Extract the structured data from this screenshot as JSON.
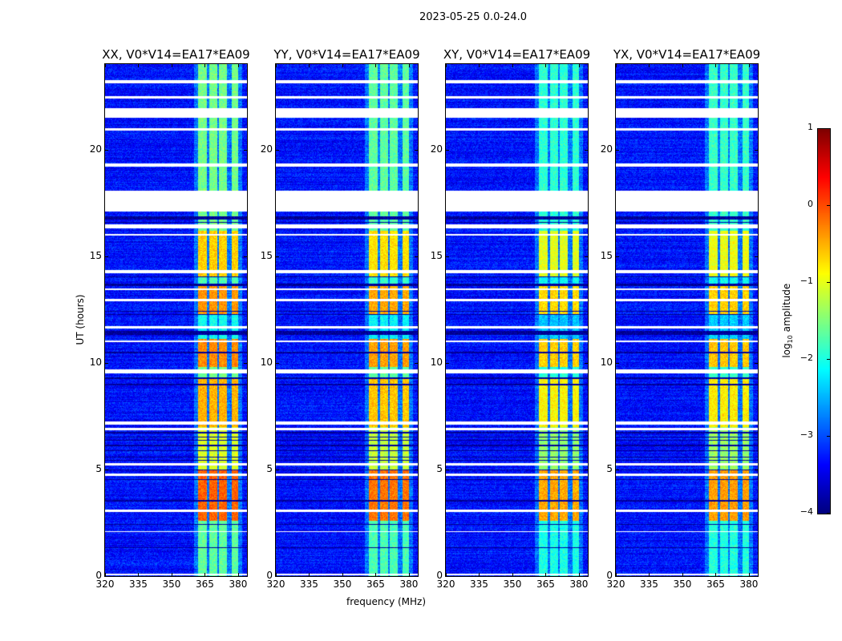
{
  "chart_data": {
    "type": "heatmap",
    "title": "2023-05-25 0.0-24.0",
    "xlabel": "frequency (MHz)",
    "ylabel": "UT (hours)",
    "xlim": [
      320,
      384
    ],
    "ylim": [
      0,
      24
    ],
    "xticks": [
      320,
      335,
      350,
      365,
      380
    ],
    "yticks": [
      0,
      5,
      10,
      15,
      20
    ],
    "colorbar": {
      "label_prefix": "log",
      "label_sub": "10",
      "label_suffix": " amplitude",
      "range": [
        -4,
        1
      ],
      "ticks": [
        1,
        0,
        -1,
        -2,
        -3,
        -4
      ],
      "colormap": "jet"
    },
    "panels": [
      {
        "title": "XX, V0*V14=EA17*EA09",
        "band_offset": 0.25
      },
      {
        "title": "YY, V0*V14=EA17*EA09",
        "band_offset": 0.15
      },
      {
        "title": "XY, V0*V14=EA17*EA09",
        "band_offset": -0.1
      },
      {
        "title": "YX, V0*V14=EA17*EA09",
        "band_offset": -0.05
      }
    ],
    "background_level": -3.3,
    "rfi_band_mhz": [
      [
        362,
        366
      ],
      [
        367,
        370.5
      ],
      [
        371.5,
        375
      ],
      [
        377,
        380
      ]
    ],
    "band_levels_by_time": [
      {
        "from": 0,
        "to": 2.6,
        "level": -1.9
      },
      {
        "from": 2.6,
        "to": 5.0,
        "level": -0.35
      },
      {
        "from": 5.0,
        "to": 7.0,
        "level": -1.3
      },
      {
        "from": 7.0,
        "to": 9.3,
        "level": -0.75
      },
      {
        "from": 9.3,
        "to": 9.8,
        "level": -1.8
      },
      {
        "from": 9.8,
        "to": 11.1,
        "level": -0.55
      },
      {
        "from": 11.1,
        "to": 12.3,
        "level": -2.3
      },
      {
        "from": 12.3,
        "to": 13.6,
        "level": -0.6
      },
      {
        "from": 13.6,
        "to": 14.0,
        "level": -2.0
      },
      {
        "from": 14.0,
        "to": 16.2,
        "level": -0.9
      },
      {
        "from": 16.2,
        "to": 24,
        "level": -1.8
      }
    ],
    "flagged_hours": [
      [
        17.1,
        18.05
      ],
      [
        21.5,
        21.95
      ],
      [
        23.1,
        23.25
      ],
      [
        22.4,
        22.5
      ],
      [
        20.9,
        21.0
      ],
      [
        19.2,
        19.35
      ],
      [
        16.3,
        16.5
      ],
      [
        15.95,
        16.05
      ],
      [
        14.2,
        14.35
      ],
      [
        13.4,
        13.5
      ],
      [
        12.9,
        13.0
      ],
      [
        11.6,
        11.7
      ],
      [
        10.95,
        11.05
      ],
      [
        9.5,
        9.7
      ],
      [
        7.1,
        7.25
      ],
      [
        6.85,
        6.95
      ],
      [
        5.2,
        5.3
      ],
      [
        4.7,
        4.8
      ],
      [
        3.0,
        3.1
      ],
      [
        2.05,
        2.12
      ],
      [
        0.05,
        0.1
      ]
    ],
    "dark_hours": [
      [
        16.7,
        16.85
      ],
      [
        16.55,
        16.6
      ],
      [
        14.0,
        14.05
      ],
      [
        13.6,
        13.7
      ],
      [
        12.4,
        12.45
      ],
      [
        12.25,
        12.3
      ],
      [
        11.3,
        11.5
      ],
      [
        10.45,
        10.5
      ],
      [
        9.25,
        9.3
      ],
      [
        8.95,
        9.0
      ],
      [
        6.7,
        6.75
      ],
      [
        6.5,
        6.55
      ],
      [
        6.35,
        6.4
      ],
      [
        6.1,
        6.15
      ],
      [
        5.85,
        5.9
      ],
      [
        5.55,
        5.6
      ],
      [
        5.4,
        5.45
      ],
      [
        4.95,
        5.0
      ],
      [
        4.5,
        4.55
      ],
      [
        3.5,
        3.55
      ],
      [
        2.4,
        2.45
      ],
      [
        1.3,
        1.35
      ]
    ]
  }
}
